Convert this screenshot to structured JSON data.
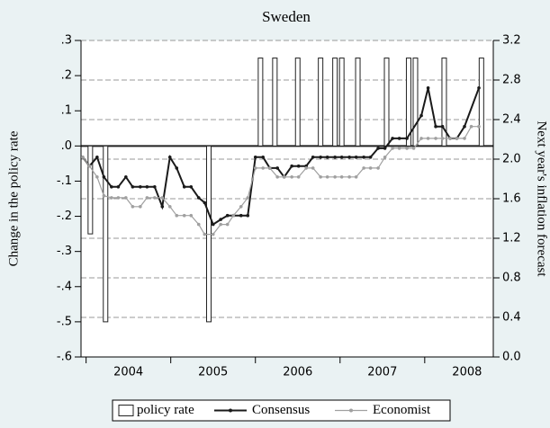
{
  "chart_data": {
    "type": "bar-line",
    "title": "Sweden",
    "y_label": "Change in the policy rate",
    "y2_label": "Next year's inflation forecast",
    "xlim": [
      2003.94,
      2008.81
    ],
    "xticks": [
      {
        "value": 2004.5,
        "label": "2004"
      },
      {
        "value": 2005.5,
        "label": "2005"
      },
      {
        "value": 2006.5,
        "label": "2006"
      },
      {
        "value": 2007.5,
        "label": "2007"
      },
      {
        "value": 2008.5,
        "label": "2008"
      }
    ],
    "xminor": [
      2004,
      2005,
      2006,
      2007,
      2008
    ],
    "ylim": [
      -0.6,
      0.3
    ],
    "yticks": [
      {
        "value": 0.3,
        "label": ".3"
      },
      {
        "value": 0.2,
        "label": ".2"
      },
      {
        "value": 0.1,
        "label": ".1"
      },
      {
        "value": 0,
        "label": ".0"
      },
      {
        "value": -0.1,
        "label": "-.1"
      },
      {
        "value": -0.2,
        "label": "-.2"
      },
      {
        "value": -0.3,
        "label": "-.3"
      },
      {
        "value": -0.4,
        "label": "-.4"
      },
      {
        "value": -0.5,
        "label": "-.5"
      },
      {
        "value": -0.6,
        "label": "-.6"
      }
    ],
    "y2lim": [
      0,
      3.2
    ],
    "y2ticks": [
      3.2,
      2.8,
      2.4,
      {
        "value": 2,
        "label": "2.0"
      },
      1.6,
      1.2,
      0.8,
      0.4,
      {
        "value": 0,
        "label": "0.0"
      }
    ],
    "grid": true,
    "series": [
      {
        "name": "policy rate",
        "type": "bar",
        "color": "#ffffff",
        "x": [
          2004.05,
          2004.23,
          2005.45,
          2006.06,
          2006.23,
          2006.5,
          2006.77,
          2006.94,
          2007.02,
          2007.21,
          2007.55,
          2007.81,
          2007.89,
          2008.23,
          2008.67
        ],
        "values": [
          -0.25,
          -0.5,
          -0.5,
          0.25,
          0.25,
          0.25,
          0.25,
          0.25,
          0.25,
          0.25,
          0.25,
          0.25,
          0.25,
          0.25,
          0.25
        ]
      },
      {
        "name": "Consensus",
        "type": "line",
        "axis": "y2",
        "color": "#1a1a1a",
        "x": [
          2003.96,
          2004.04,
          2004.13,
          2004.21,
          2004.3,
          2004.38,
          2004.47,
          2004.55,
          2004.64,
          2004.72,
          2004.81,
          2004.9,
          2004.99,
          2005.07,
          2005.16,
          2005.24,
          2005.33,
          2005.4,
          2005.5,
          2005.59,
          2005.67,
          2005.74,
          2005.83,
          2005.91,
          2006.0,
          2006.09,
          2006.17,
          2006.26,
          2006.34,
          2006.43,
          2006.51,
          2006.6,
          2006.68,
          2006.77,
          2006.85,
          2006.94,
          2007.02,
          2007.11,
          2007.19,
          2007.28,
          2007.36,
          2007.45,
          2007.53,
          2007.62,
          2007.7,
          2007.79,
          2007.96,
          2008.04,
          2008.13,
          2008.21,
          2008.3,
          2008.38,
          2008.47,
          2008.64
        ],
        "values": [
          2.02,
          1.93,
          2.02,
          1.82,
          1.72,
          1.72,
          1.82,
          1.72,
          1.72,
          1.72,
          1.72,
          1.52,
          2.02,
          1.91,
          1.72,
          1.72,
          1.61,
          1.56,
          1.34,
          1.39,
          1.43,
          1.43,
          1.43,
          1.43,
          2.02,
          2.02,
          1.91,
          1.91,
          1.82,
          1.93,
          1.93,
          1.93,
          2.02,
          2.02,
          2.02,
          2.02,
          2.02,
          2.02,
          2.02,
          2.02,
          2.02,
          2.11,
          2.11,
          2.21,
          2.21,
          2.21,
          2.44,
          2.72,
          2.33,
          2.33,
          2.21,
          2.21,
          2.33,
          2.72
        ]
      },
      {
        "name": "Economist",
        "type": "line",
        "axis": "y2",
        "color": "#a0a0a0",
        "x": [
          2003.96,
          2004.04,
          2004.13,
          2004.21,
          2004.3,
          2004.38,
          2004.47,
          2004.55,
          2004.64,
          2004.72,
          2004.81,
          2004.9,
          2004.99,
          2005.07,
          2005.16,
          2005.24,
          2005.33,
          2005.4,
          2005.5,
          2005.59,
          2005.67,
          2005.74,
          2005.83,
          2005.91,
          2006.0,
          2006.09,
          2006.17,
          2006.26,
          2006.34,
          2006.43,
          2006.51,
          2006.6,
          2006.68,
          2006.77,
          2006.85,
          2006.94,
          2007.02,
          2007.11,
          2007.19,
          2007.28,
          2007.36,
          2007.45,
          2007.53,
          2007.62,
          2007.7,
          2007.79,
          2007.87,
          2007.96,
          2008.04,
          2008.13,
          2008.21,
          2008.3,
          2008.38,
          2008.47,
          2008.55,
          2008.64
        ],
        "values": [
          2.02,
          1.93,
          1.82,
          1.63,
          1.61,
          1.61,
          1.61,
          1.52,
          1.52,
          1.61,
          1.61,
          1.61,
          1.52,
          1.43,
          1.43,
          1.43,
          1.34,
          1.24,
          1.24,
          1.34,
          1.34,
          1.43,
          1.52,
          1.61,
          1.91,
          1.91,
          1.91,
          1.82,
          1.82,
          1.82,
          1.82,
          1.91,
          1.91,
          1.82,
          1.82,
          1.82,
          1.82,
          1.82,
          1.82,
          1.91,
          1.91,
          1.91,
          2.02,
          2.11,
          2.11,
          2.11,
          2.11,
          2.21,
          2.21,
          2.21,
          2.21,
          2.21,
          2.21,
          2.21,
          2.33,
          2.33
        ]
      }
    ]
  }
}
